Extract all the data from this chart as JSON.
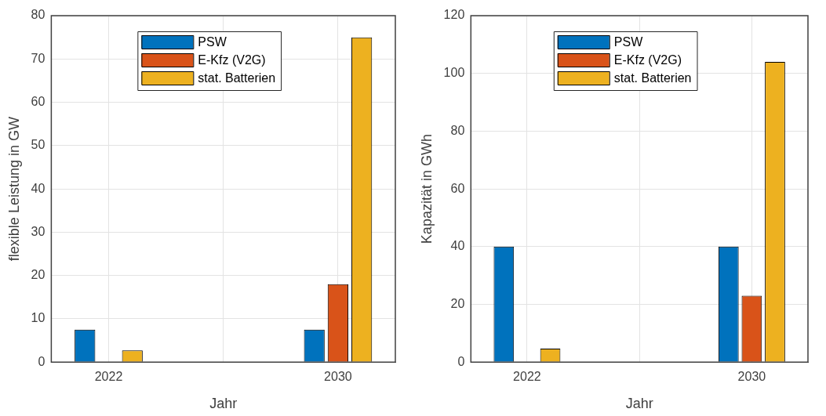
{
  "chart_data": [
    {
      "type": "bar",
      "xlabel": "Jahr",
      "ylabel": "flexible Leistung in GW",
      "categories": [
        "2022",
        null,
        "2030"
      ],
      "series": [
        {
          "name": "PSW",
          "color": "#0072bd",
          "values": [
            7.5,
            null,
            7.5
          ]
        },
        {
          "name": "E-Kfz (V2G)",
          "color": "#d95319",
          "values": [
            null,
            null,
            18
          ]
        },
        {
          "name": "stat. Batterien",
          "color": "#edb120",
          "values": [
            2.7,
            null,
            75
          ]
        }
      ],
      "ylim": [
        0,
        80
      ],
      "yticks": [
        0,
        10,
        20,
        30,
        40,
        50,
        60,
        70,
        80
      ],
      "grid": true,
      "legend": "top"
    },
    {
      "type": "bar",
      "xlabel": "Jahr",
      "ylabel": "Kapazität in GWh",
      "categories": [
        "2022",
        null,
        "2030"
      ],
      "series": [
        {
          "name": "PSW",
          "color": "#0072bd",
          "values": [
            40,
            null,
            40
          ]
        },
        {
          "name": "E-Kfz (V2G)",
          "color": "#d95319",
          "values": [
            null,
            null,
            23
          ]
        },
        {
          "name": "stat. Batterien",
          "color": "#edb120",
          "values": [
            4.7,
            null,
            104
          ]
        }
      ],
      "ylim": [
        0,
        120
      ],
      "yticks": [
        0,
        20,
        40,
        60,
        80,
        100,
        120
      ],
      "grid": true,
      "legend": "top"
    }
  ]
}
